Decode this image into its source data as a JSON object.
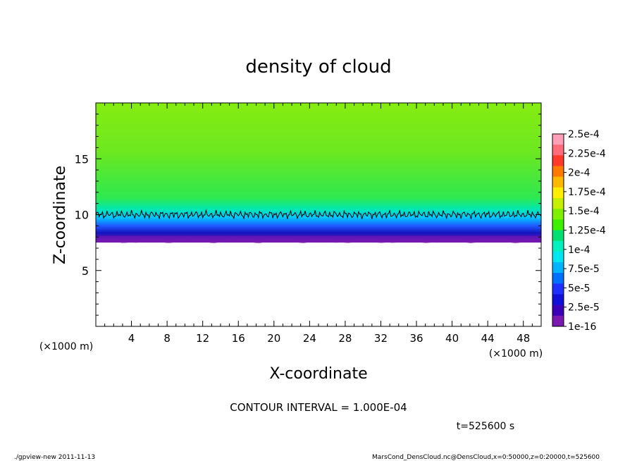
{
  "chart_data": {
    "type": "heatmap",
    "title": "density of cloud",
    "xlabel": "X-coordinate",
    "ylabel": "Z-coordinate",
    "x_unit": "(×1000 m)",
    "y_unit": "(×1000 m)",
    "xlim": [
      0,
      50
    ],
    "ylim": [
      0,
      20
    ],
    "x_ticks": [
      "4",
      "8",
      "12",
      "16",
      "20",
      "24",
      "28",
      "32",
      "36",
      "40",
      "44",
      "48"
    ],
    "y_ticks": [
      "5",
      "10",
      "15"
    ],
    "colorbar": {
      "labels": [
        "2.5e-4",
        "2.25e-4",
        "2e-4",
        "1.75e-4",
        "1.5e-4",
        "1.25e-4",
        "1e-4",
        "7.5e-5",
        "5e-5",
        "2.5e-5",
        "1e-16"
      ],
      "colors": [
        "#ff9fb8",
        "#ff6d7a",
        "#ff3a2a",
        "#ff7a00",
        "#ffb800",
        "#ffee00",
        "#c6ee00",
        "#7ff000",
        "#3cf000",
        "#00e070",
        "#00f0c0",
        "#00e6f0",
        "#00b4ff",
        "#0070ff",
        "#1f30ff",
        "#1010d8",
        "#3c00b8",
        "#7a18b0"
      ]
    },
    "structure": {
      "cloud_base_z": 7.5,
      "cloud_top_z": 20,
      "contour_level_z": 10
    },
    "contour_interval": "CONTOUR INTERVAL = 1.000E-04",
    "time": "t=525600 s",
    "footer_left": "./gpview-new   2011-11-13",
    "footer_right": "MarsCond_DensCloud.nc@DensCloud,x=0:50000,z=0:20000,t=525600"
  }
}
